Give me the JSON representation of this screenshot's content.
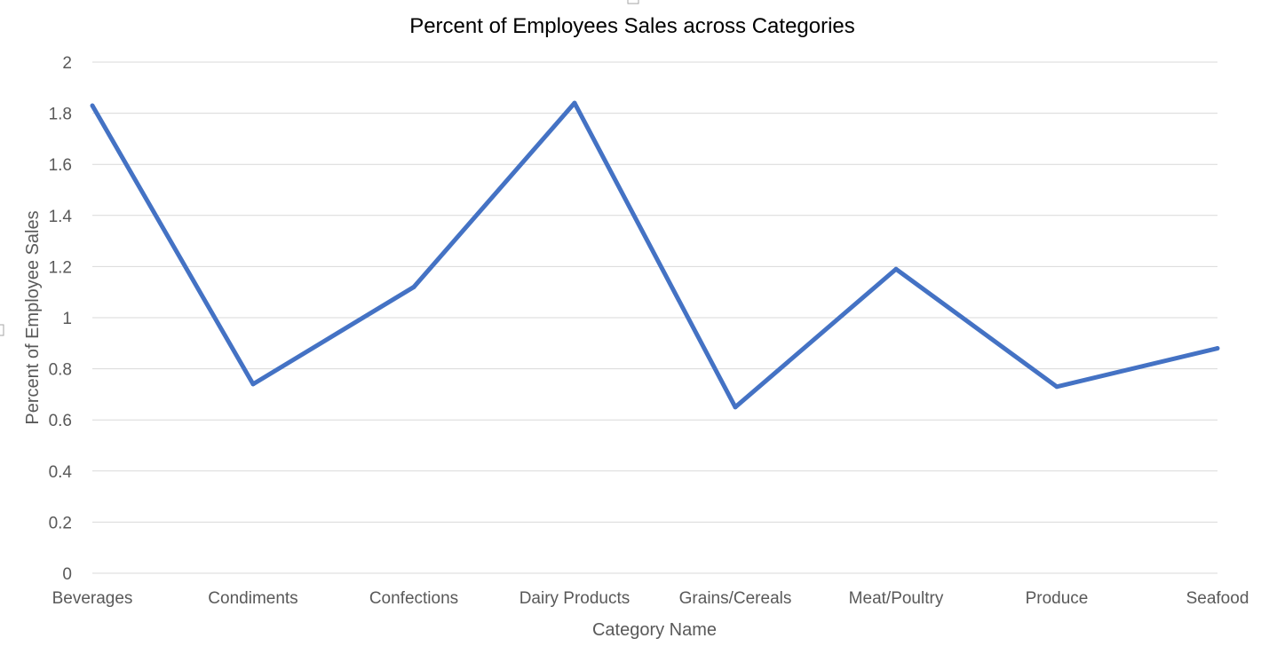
{
  "chart_data": {
    "type": "line",
    "title": "Percent of Employees Sales across Categories",
    "xlabel": "Category Name",
    "ylabel": "Percent of Employee Sales",
    "categories": [
      "Beverages",
      "Condiments",
      "Confections",
      "Dairy Products",
      "Grains/Cereals",
      "Meat/Poultry",
      "Produce",
      "Seafood"
    ],
    "series": [
      {
        "values": [
          1.83,
          0.74,
          1.12,
          1.84,
          0.65,
          1.19,
          0.73,
          0.88
        ],
        "color": "#4472c4"
      }
    ],
    "ylim": [
      0,
      2
    ],
    "yticks": [
      0,
      0.2,
      0.4,
      0.6,
      0.8,
      1,
      1.2,
      1.4,
      1.6,
      1.8,
      2
    ],
    "ytick_labels": [
      "0",
      "0.2",
      "0.4",
      "0.6",
      "0.8",
      "1",
      "1.2",
      "1.4",
      "1.6",
      "1.8",
      "2"
    ],
    "grid": true,
    "legend": "none"
  }
}
